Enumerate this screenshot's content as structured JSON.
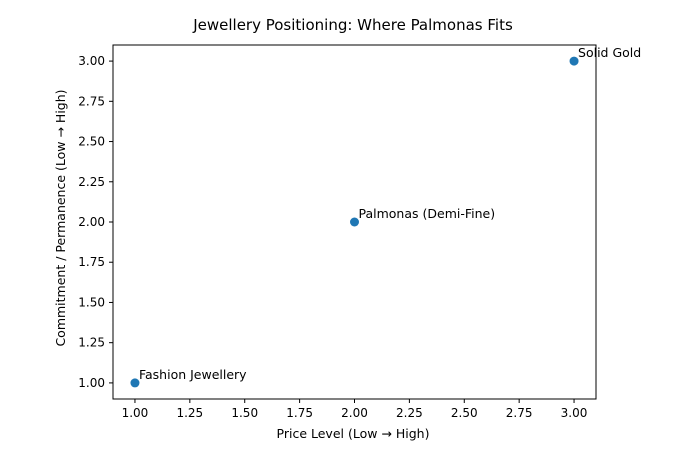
{
  "chart_data": {
    "type": "scatter",
    "title": "Jewellery Positioning: Where Palmonas Fits",
    "xlabel": "Price Level (Low → High)",
    "ylabel": "Commitment / Permanence (Low → High)",
    "xlim": [
      0.9,
      3.1
    ],
    "ylim": [
      0.9,
      3.1
    ],
    "xticks": [
      "1.00",
      "1.25",
      "1.50",
      "1.75",
      "2.00",
      "2.25",
      "2.50",
      "2.75",
      "3.00"
    ],
    "yticks": [
      "1.00",
      "1.25",
      "1.50",
      "1.75",
      "2.00",
      "2.25",
      "2.50",
      "2.75",
      "3.00"
    ],
    "grid": false,
    "points": [
      {
        "x": 1,
        "y": 1,
        "label": "Fashion Jewellery"
      },
      {
        "x": 2,
        "y": 2,
        "label": "Palmonas (Demi-Fine)"
      },
      {
        "x": 3,
        "y": 3,
        "label": "Solid Gold"
      }
    ],
    "marker_color": "#1f77b4"
  }
}
